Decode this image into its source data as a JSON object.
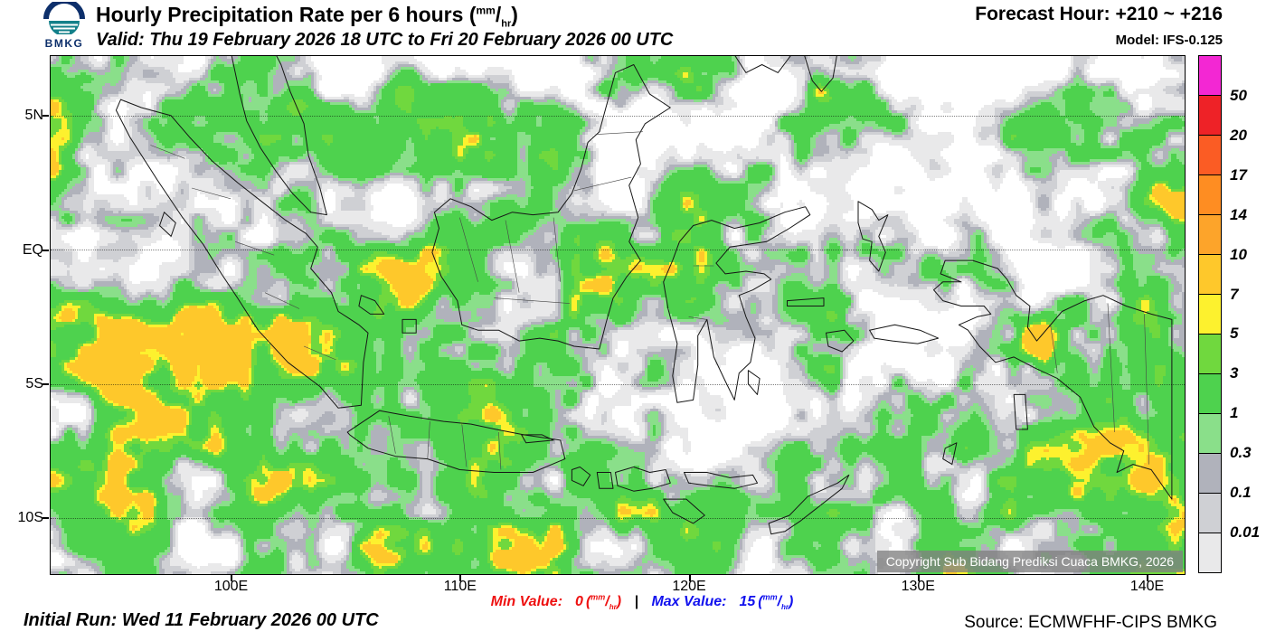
{
  "header": {
    "logo_text": "BMKG",
    "title": "Hourly Precipitation Rate per 6 hours",
    "unit": {
      "open": "(",
      "top": "mm",
      "slash": "/",
      "bottom": "hr",
      "close": ")"
    },
    "valid": "Valid: Thu 19 February 2026 18 UTC to Fri 20 February 2026 00 UTC",
    "forecast_hour": "Forecast Hour: +210 ~ +216",
    "model": "Model: IFS-0.125"
  },
  "map": {
    "lat_labels": [
      "5N",
      "EQ",
      "5S",
      "10S"
    ],
    "lat_values": [
      5,
      0,
      -5,
      -10
    ],
    "lon_labels": [
      "100E",
      "110E",
      "120E",
      "130E",
      "140E"
    ],
    "lon_values": [
      100,
      110,
      120,
      130,
      140
    ],
    "copyright": "Copyright Sub Bidang Prediksi Cuaca BMKG, 2026"
  },
  "legend": {
    "labels": [
      "50",
      "20",
      "17",
      "14",
      "10",
      "7",
      "5",
      "3",
      "1",
      "0.3",
      "0.1",
      "0.01"
    ],
    "colors": [
      "#f327d3",
      "#ee2227",
      "#fb5c24",
      "#fe8d22",
      "#fda42a",
      "#fec82b",
      "#fdf12e",
      "#70d83e",
      "#4ed24e",
      "#8adf8a",
      "#b0b2bb",
      "#cfd0d4",
      "#e9e9ea"
    ]
  },
  "footer": {
    "initial_run": "Initial Run: Wed 11 February 2026 00 UTC",
    "min_label": "Min Value:",
    "min_value": "0",
    "separator": "|",
    "max_label": "Max Value:",
    "max_value": "15",
    "source": "Source: ECMWFHF-CIPS BMKG"
  },
  "colors": {
    "min_value": "#ee1111",
    "max_value": "#1111ee",
    "land_outline": "#161616",
    "sea_background": "#ffffff"
  }
}
